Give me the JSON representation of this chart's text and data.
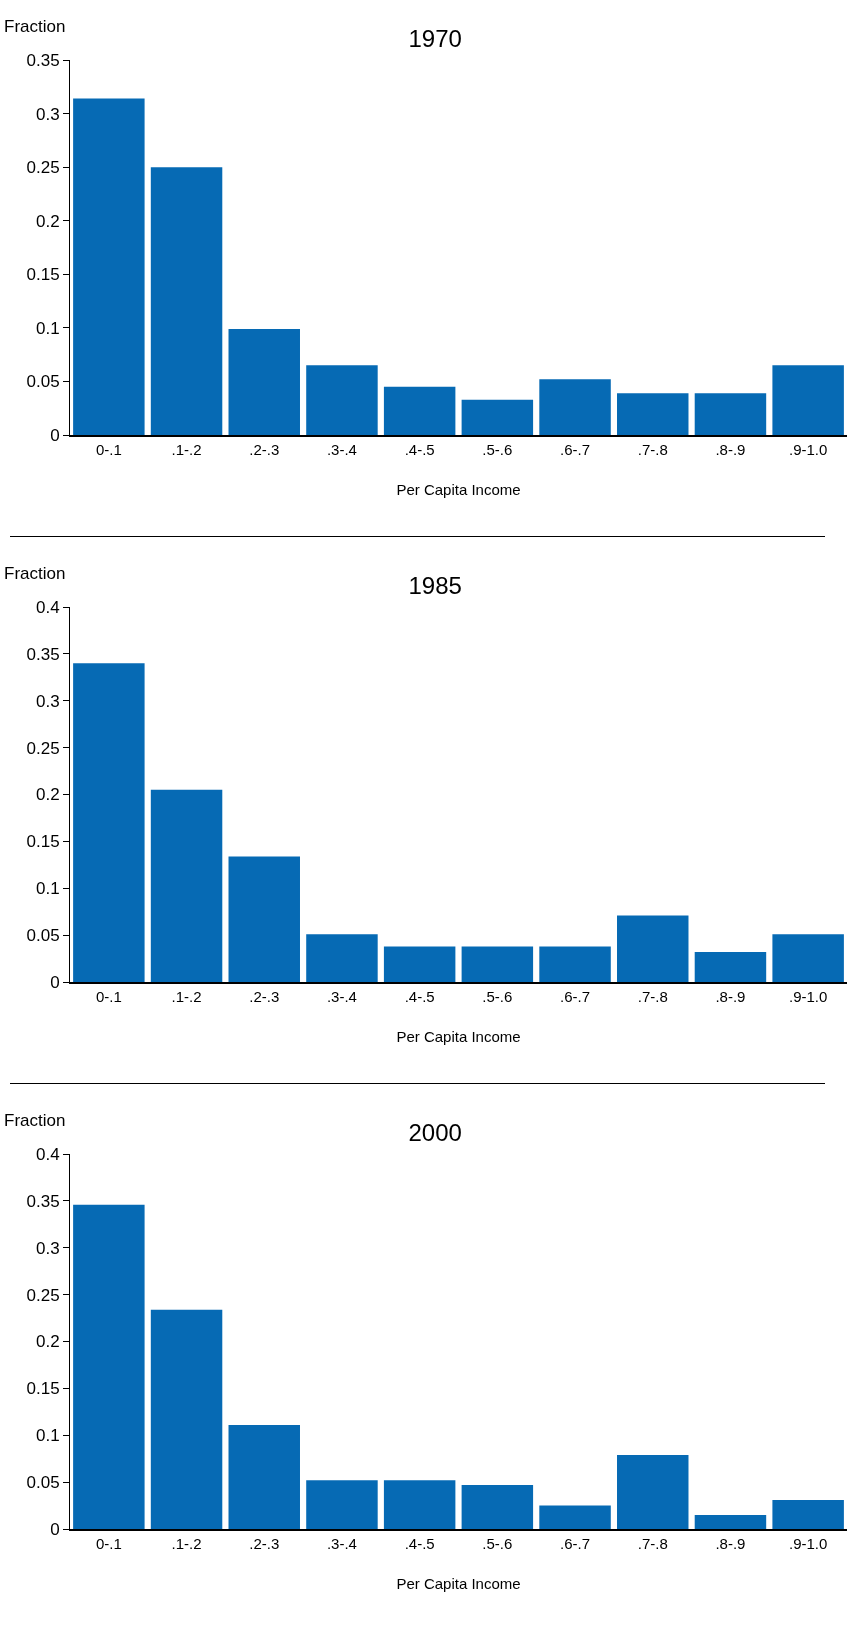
{
  "chart_data": [
    {
      "type": "bar",
      "title": "1970",
      "ylabel": "Fraction",
      "xlabel": "Per Capita Income",
      "categories": [
        "0-.1",
        ".1-.2",
        ".2-.3",
        ".3-.4",
        ".4-.5",
        ".5-.6",
        ".6-.7",
        ".7-.8",
        ".8-.9",
        ".9-1.0"
      ],
      "values": [
        0.314,
        0.25,
        0.099,
        0.065,
        0.045,
        0.033,
        0.052,
        0.039,
        0.039,
        0.065
      ],
      "color": "#066ab4",
      "ylim": [
        0,
        0.35
      ],
      "yticks": [
        0,
        0.05,
        0.1,
        0.15,
        0.2,
        0.25,
        0.3,
        0.35
      ],
      "grid": false,
      "legend": false
    },
    {
      "type": "bar",
      "title": "1985",
      "ylabel": "Fraction",
      "xlabel": "Per Capita Income",
      "categories": [
        "0-.1",
        ".1-.2",
        ".2-.3",
        ".3-.4",
        ".4-.5",
        ".5-.6",
        ".6-.7",
        ".7-.8",
        ".8-.9",
        ".9-1.0"
      ],
      "values": [
        0.34,
        0.205,
        0.134,
        0.051,
        0.038,
        0.038,
        0.038,
        0.071,
        0.032,
        0.051
      ],
      "color": "#066ab4",
      "ylim": [
        0,
        0.4
      ],
      "yticks": [
        0,
        0.05,
        0.1,
        0.15,
        0.2,
        0.25,
        0.3,
        0.35,
        0.4
      ],
      "grid": false,
      "legend": false
    },
    {
      "type": "bar",
      "title": "2000",
      "ylabel": "Fraction",
      "xlabel": "Per Capita Income",
      "categories": [
        "0-.1",
        ".1-.2",
        ".2-.3",
        ".3-.4",
        ".4-.5",
        ".5-.6",
        ".6-.7",
        ".7-.8",
        ".8-.9",
        ".9-1.0"
      ],
      "values": [
        0.346,
        0.234,
        0.111,
        0.052,
        0.052,
        0.047,
        0.025,
        0.079,
        0.015,
        0.031
      ],
      "color": "#066ab4",
      "ylim": [
        0,
        0.4
      ],
      "yticks": [
        0,
        0.05,
        0.1,
        0.15,
        0.2,
        0.25,
        0.3,
        0.35,
        0.4
      ],
      "grid": false,
      "legend": false
    }
  ]
}
